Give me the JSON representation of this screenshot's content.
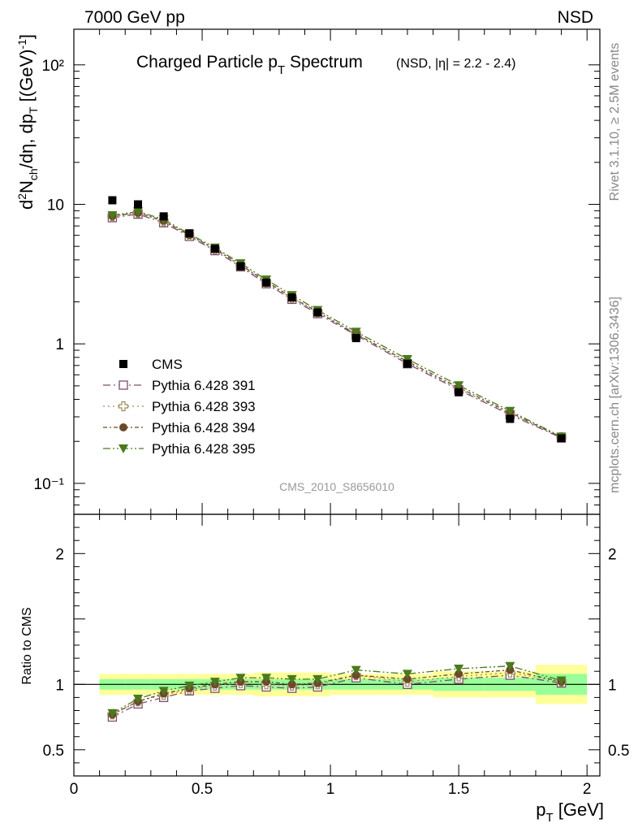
{
  "header": {
    "left": "7000 GeV pp",
    "right": "NSD"
  },
  "side_labels": {
    "rivet": "Rivet 3.1.10, ≥ 2.5M events",
    "mcplots": "mcplots.cern.ch [arXiv:1306.3436]"
  },
  "watermark": "CMS_2010_S8656010",
  "chart_data": {
    "type": "scatter",
    "title": "Charged Particle p",
    "title_sub": "T",
    "title_rest": " Spectrum",
    "title_note": "(NSD, |η| = 2.2 - 2.4)",
    "xlabel": "p",
    "xlabel_sub": "T",
    "xlabel_unit": " [GeV]",
    "ylabel": "d²N_ch/dη dp_T [(GeV)^-1]",
    "ratio_ylabel": "Ratio to CMS",
    "xlim": [
      0,
      2.05
    ],
    "ylim": [
      0.06,
      180
    ],
    "yscale": "log",
    "ratio_ylim": [
      0.3,
      2.3
    ],
    "x_ticks": [
      "0",
      "0.5",
      "1",
      "1.5",
      "2"
    ],
    "y_ticks": [
      "10⁻¹",
      "1",
      "10",
      "10²"
    ],
    "ratio_ticks": [
      "0.5",
      "1",
      "2"
    ],
    "x": [
      0.15,
      0.25,
      0.35,
      0.45,
      0.55,
      0.65,
      0.75,
      0.85,
      0.95,
      1.1,
      1.3,
      1.5,
      1.7,
      1.9
    ],
    "bin_edges": [
      0.1,
      0.2,
      0.3,
      0.4,
      0.5,
      0.6,
      0.7,
      0.8,
      0.9,
      1.0,
      1.2,
      1.4,
      1.6,
      1.8,
      2.0
    ],
    "band_stat": [
      0.04,
      0.04,
      0.04,
      0.04,
      0.04,
      0.04,
      0.04,
      0.04,
      0.04,
      0.04,
      0.04,
      0.05,
      0.05,
      0.08
    ],
    "band_syst": [
      0.08,
      0.08,
      0.08,
      0.08,
      0.08,
      0.08,
      0.09,
      0.09,
      0.09,
      0.08,
      0.08,
      0.1,
      0.1,
      0.15
    ],
    "legend": {
      "placement": "lower-left"
    },
    "series": [
      {
        "name": "CMS",
        "marker": "square-filled",
        "color": "#000000",
        "values": [
          10.7,
          10.0,
          8.2,
          6.2,
          4.8,
          3.6,
          2.75,
          2.15,
          1.68,
          1.1,
          0.72,
          0.45,
          0.29,
          0.21
        ]
      },
      {
        "name": "Pythia 6.428 391",
        "marker": "square-open",
        "color": "#7b4f6e",
        "ratio": [
          0.75,
          0.85,
          0.9,
          0.95,
          0.97,
          0.99,
          0.98,
          0.97,
          0.98,
          1.05,
          1.0,
          1.04,
          1.07,
          1.01
        ]
      },
      {
        "name": "Pythia 6.428 393",
        "marker": "cross-open",
        "color": "#a08a5a",
        "ratio": [
          0.77,
          0.87,
          0.92,
          0.96,
          0.99,
          1.01,
          1.0,
          0.99,
          1.0,
          1.07,
          1.02,
          1.06,
          1.09,
          1.02
        ]
      },
      {
        "name": "Pythia 6.428 394",
        "marker": "circle-filled",
        "color": "#6b4a2b",
        "ratio": [
          0.77,
          0.87,
          0.93,
          0.97,
          1.0,
          1.02,
          1.02,
          1.0,
          1.01,
          1.07,
          1.04,
          1.08,
          1.11,
          1.02
        ]
      },
      {
        "name": "Pythia 6.428 395",
        "marker": "triangle-down-filled",
        "color": "#4a7a1c",
        "ratio": [
          0.78,
          0.89,
          0.95,
          0.99,
          1.02,
          1.05,
          1.05,
          1.04,
          1.04,
          1.11,
          1.08,
          1.12,
          1.14,
          1.03
        ]
      }
    ]
  }
}
